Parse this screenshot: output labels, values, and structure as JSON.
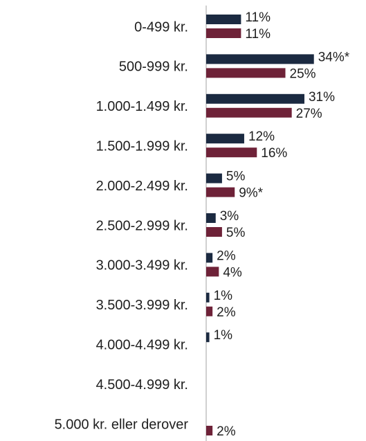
{
  "chart_data": {
    "type": "bar",
    "orientation": "horizontal",
    "categories": [
      "0-499 kr.",
      "500-999 kr.",
      "1.000-1.499 kr.",
      "1.500-1.999 kr.",
      "2.000-2.499 kr.",
      "2.500-2.999 kr.",
      "3.000-3.499 kr.",
      "3.500-3.999 kr.",
      "4.000-4.499 kr.",
      "4.500-4.999 kr.",
      "5.000 kr. eller derover"
    ],
    "xlim": [
      0,
      50
    ],
    "series": [
      {
        "color": "#1b2a41",
        "values": [
          11,
          34,
          31,
          12,
          5,
          3,
          2,
          1,
          1,
          null,
          null
        ],
        "value_labels": [
          "11%",
          "34%*",
          "31%",
          "12%",
          "5%",
          "3%",
          "2%",
          "1%",
          "1%",
          null,
          null
        ]
      },
      {
        "color": "#6e2238",
        "values": [
          11,
          25,
          27,
          16,
          9,
          5,
          4,
          2,
          null,
          null,
          2
        ],
        "value_labels": [
          "11%",
          "25%",
          "27%",
          "16%",
          "9%*",
          "5%",
          "4%",
          "2%",
          null,
          null,
          "2%"
        ]
      }
    ]
  }
}
